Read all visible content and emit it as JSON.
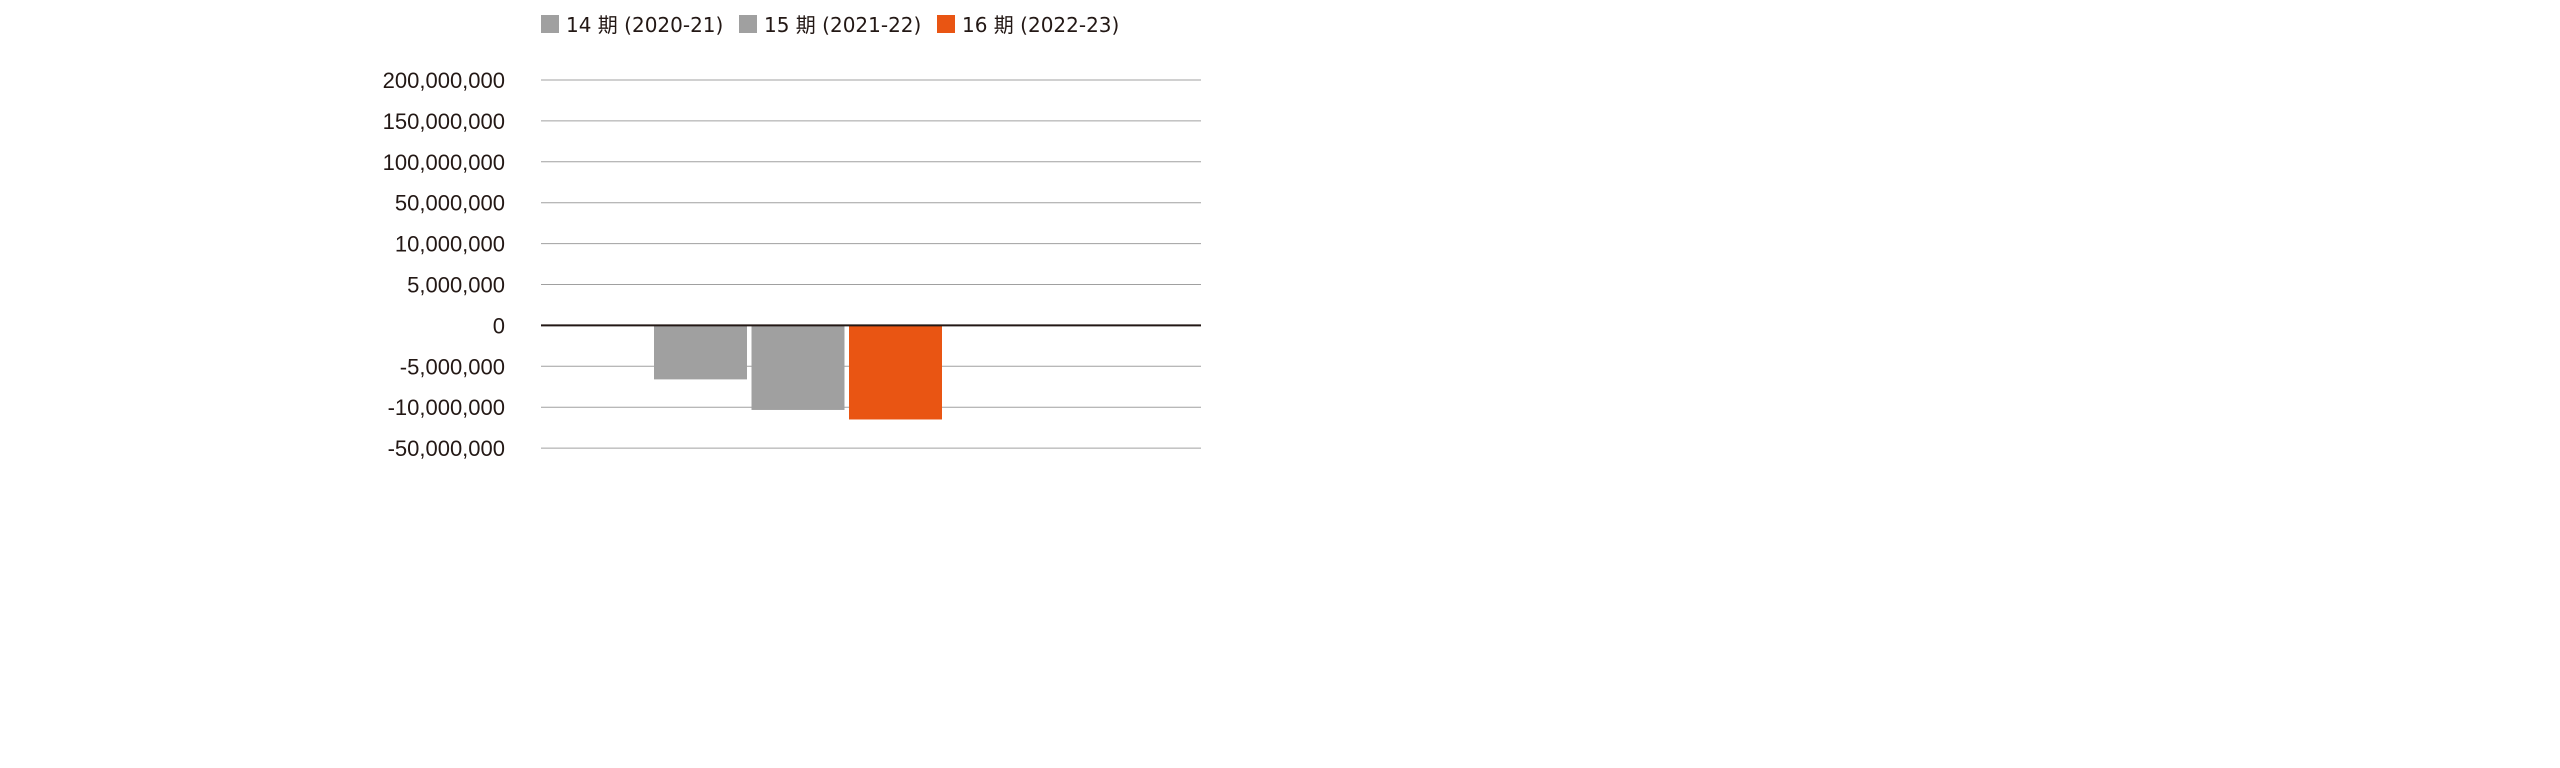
{
  "chart_data": {
    "type": "bar",
    "title": "",
    "xlabel": "",
    "ylabel": "",
    "grid": true,
    "legend_position": "top-center",
    "y_scale": "segmented (non-uniform tick spacing)",
    "y_ticks": [
      200000000,
      150000000,
      100000000,
      50000000,
      10000000,
      5000000,
      0,
      -5000000,
      -10000000,
      -50000000
    ],
    "y_tick_labels": [
      "200,000,000",
      "150,000,000",
      "100,000,000",
      "50,000,000",
      "10,000,000",
      "5,000,000",
      "0",
      "-5,000,000",
      "-10,000,000",
      "-50,000,000"
    ],
    "ylim": [
      -50000000,
      200000000
    ],
    "series": [
      {
        "name": "14 期 (2020-21)",
        "color": "#a0a0a0",
        "values": [
          -6600000
        ]
      },
      {
        "name": "15 期 (2021-22)",
        "color": "#a0a0a0",
        "values": [
          -12700000
        ]
      },
      {
        "name": "16 期 (2022-23)",
        "color": "#e95513",
        "values": [
          -22000000
        ]
      }
    ],
    "colors": {
      "gridline": "#a0a0a0",
      "zero_line": "#231815",
      "text": "#231815"
    }
  }
}
